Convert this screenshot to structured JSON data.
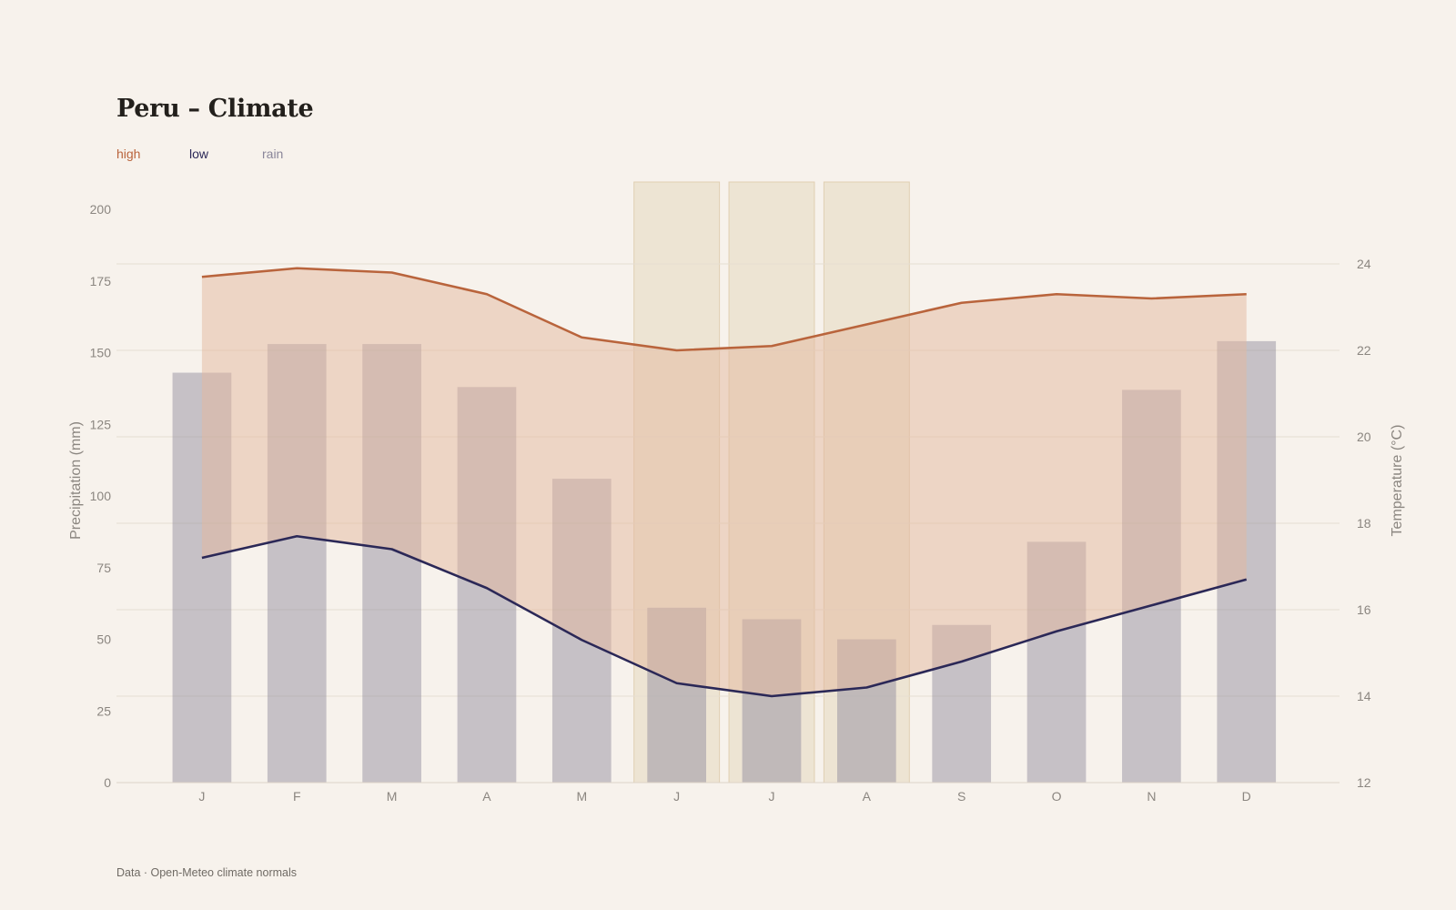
{
  "title": "Peru – Climate",
  "legend": {
    "high": "high",
    "low": "low",
    "rain": "rain"
  },
  "source": "Data · Open-Meteo climate normals",
  "colors": {
    "background": "#f7f2ec",
    "high": "#b9643c",
    "low": "#2b2857",
    "rain": "#8a869a",
    "band_fill": "#e4b89d",
    "highlight": "#e6d8c0",
    "grid": "#e6ded2"
  },
  "chart_data": {
    "type": "bar+line",
    "title": "Peru – Climate",
    "categories": [
      "J",
      "F",
      "M",
      "A",
      "M",
      "J",
      "J",
      "A",
      "S",
      "O",
      "N",
      "D"
    ],
    "highlight_months": [
      5,
      6,
      7
    ],
    "left_axis": {
      "label": "Precipitation (mm)",
      "min": 0,
      "max": 200,
      "ticks": [
        0,
        25,
        50,
        75,
        100,
        125,
        150,
        175,
        200
      ]
    },
    "right_axis": {
      "label": "Temperature (°C)",
      "min": 12,
      "max": 24,
      "ticks": [
        12,
        14,
        16,
        18,
        20,
        22,
        24
      ]
    },
    "series": [
      {
        "name": "rain",
        "type": "bar",
        "axis": "left",
        "values": [
          143,
          153,
          153,
          138,
          106,
          61,
          57,
          50,
          55,
          84,
          137,
          154
        ]
      },
      {
        "name": "high",
        "type": "line",
        "axis": "right",
        "values": [
          23.7,
          23.9,
          23.8,
          23.3,
          22.3,
          22.0,
          22.1,
          22.6,
          23.1,
          23.3,
          23.2,
          23.3
        ]
      },
      {
        "name": "low",
        "type": "line",
        "axis": "right",
        "values": [
          17.2,
          17.7,
          17.4,
          16.5,
          15.3,
          14.3,
          14.0,
          14.2,
          14.8,
          15.5,
          16.1,
          16.7
        ]
      }
    ],
    "grid": true,
    "legend_position": "top-left"
  }
}
